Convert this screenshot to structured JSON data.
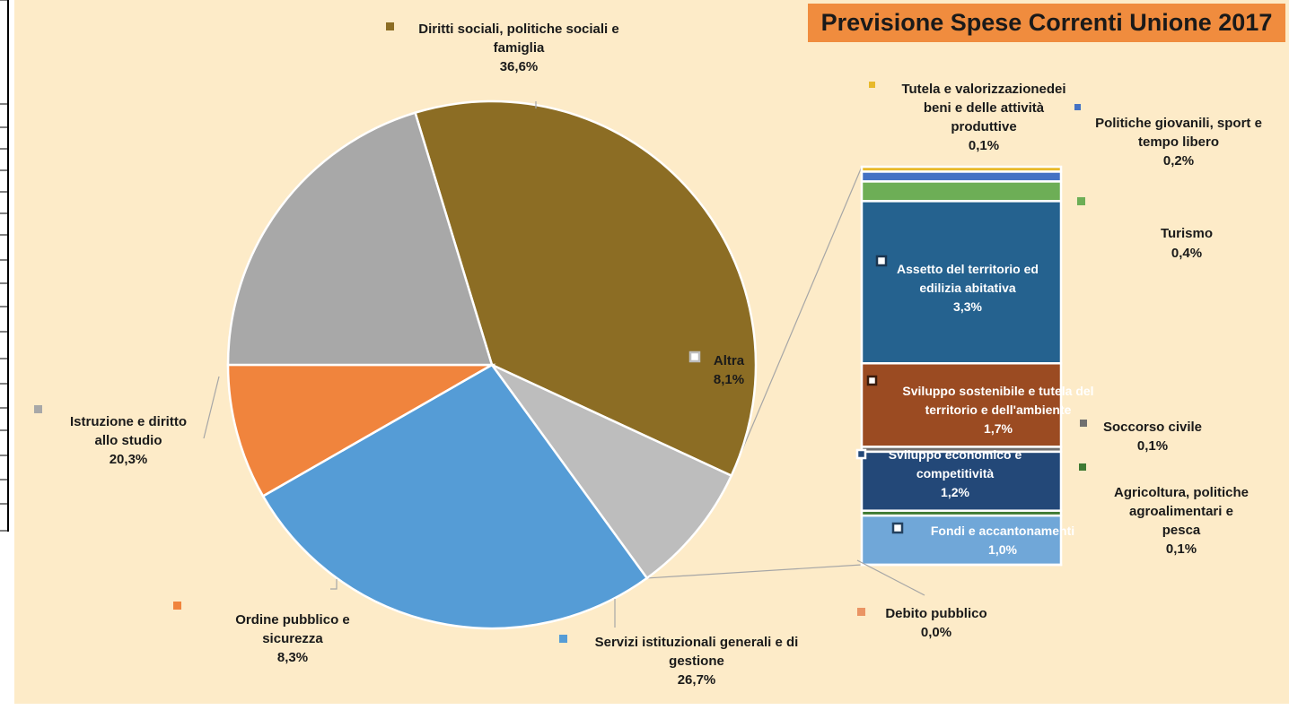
{
  "chart_data": {
    "type": "pie",
    "title": "Previsione Spese Correnti Unione 2017",
    "pie": {
      "slices": [
        {
          "label": [
            "Diritti sociali, politiche sociali e",
            "famiglia"
          ],
          "value_label": "36,6%",
          "value": 36.6,
          "color": "#8c6d24"
        },
        {
          "label": [
            "Altra"
          ],
          "value_label": "8,1%",
          "value": 8.1,
          "color": "#bdbdbd"
        },
        {
          "label": [
            "Servizi istituzionali generali e di",
            "gestione"
          ],
          "value_label": "26,7%",
          "value": 26.7,
          "color": "#559cd6"
        },
        {
          "label": [
            "Ordine pubblico e",
            "sicurezza"
          ],
          "value_label": "8,3%",
          "value": 8.3,
          "color": "#f0843d"
        },
        {
          "label": [
            "Istruzione e diritto",
            "allo studio"
          ],
          "value_label": "20,3%",
          "value": 20.3,
          "color": "#a8a8a8"
        }
      ]
    },
    "breakdown": {
      "segments": [
        {
          "label": [
            "Tutela e valorizzazionedei",
            "beni e delle attività",
            "produttive"
          ],
          "value_label": "0,1%",
          "value": 0.1,
          "color": "#e8b92a"
        },
        {
          "label": [
            "Politiche giovanili, sport e",
            "tempo libero"
          ],
          "value_label": "0,2%",
          "value": 0.2,
          "color": "#4472c4"
        },
        {
          "label": [
            "Turismo"
          ],
          "value_label": "0,4%",
          "value": 0.4,
          "color": "#6dae56"
        },
        {
          "label": [
            "Assetto del territorio ed",
            "edilizia abitativa"
          ],
          "value_label": "3,3%",
          "value": 3.3,
          "color": "#25628f"
        },
        {
          "label": [
            "Sviluppo sostenibile e tutela del",
            "territorio e dell'ambiente"
          ],
          "value_label": "1,7%",
          "value": 1.7,
          "color": "#9b4b22"
        },
        {
          "label": [
            "Soccorso civile"
          ],
          "value_label": "0,1%",
          "value": 0.1,
          "color": "#707070"
        },
        {
          "label": [
            "Sviluppo economico e",
            "competitività"
          ],
          "value_label": "1,2%",
          "value": 1.2,
          "color": "#234878"
        },
        {
          "label": [
            "Agricoltura, politiche",
            "agroalimentari e",
            "pesca"
          ],
          "value_label": "0,1%",
          "value": 0.1,
          "color": "#3f7a33"
        },
        {
          "label": [
            "Fondi e accantonamenti"
          ],
          "value_label": "1,0%",
          "value": 1.0,
          "color": "#70a7d8"
        },
        {
          "label": [
            "Debito pubblico"
          ],
          "value_label": "0,0%",
          "value": 0.0,
          "color": "#ea9464"
        }
      ]
    },
    "colors": {
      "background": "#fdebc8",
      "title_bg": "#f08c3e"
    }
  }
}
